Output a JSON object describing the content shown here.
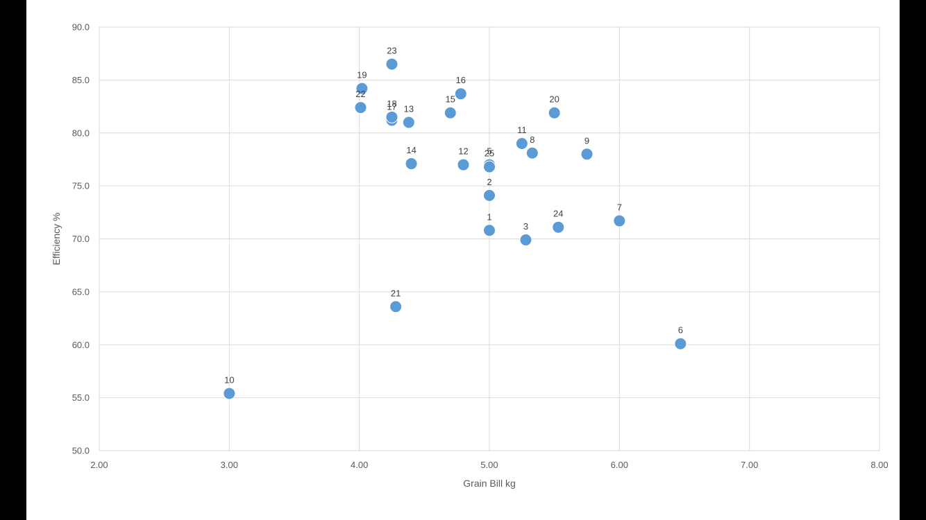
{
  "chart_data": {
    "type": "scatter",
    "title": "",
    "xlabel": "Grain Bill kg",
    "ylabel": "Efficiency %",
    "xlim": [
      2,
      8
    ],
    "ylim": [
      50,
      90
    ],
    "x_ticks": [
      "2.00",
      "3.00",
      "4.00",
      "5.00",
      "6.00",
      "7.00",
      "8.00"
    ],
    "y_ticks": [
      "50.0",
      "55.0",
      "60.0",
      "65.0",
      "70.0",
      "75.0",
      "80.0",
      "85.0",
      "90.0"
    ],
    "grid": true,
    "marker_color": "#5b9bd5",
    "points": [
      {
        "label": "1",
        "x": 5.0,
        "y": 70.8
      },
      {
        "label": "2",
        "x": 5.0,
        "y": 74.1
      },
      {
        "label": "3",
        "x": 5.28,
        "y": 69.9
      },
      {
        "label": "5",
        "x": 5.0,
        "y": 77.0
      },
      {
        "label": "6",
        "x": 6.47,
        "y": 60.1
      },
      {
        "label": "7",
        "x": 6.0,
        "y": 71.7
      },
      {
        "label": "8",
        "x": 5.33,
        "y": 78.1
      },
      {
        "label": "9",
        "x": 5.75,
        "y": 78.0
      },
      {
        "label": "10",
        "x": 3.0,
        "y": 55.4
      },
      {
        "label": "11",
        "x": 5.25,
        "y": 79.0
      },
      {
        "label": "12",
        "x": 4.8,
        "y": 77.0
      },
      {
        "label": "13",
        "x": 4.38,
        "y": 81.0
      },
      {
        "label": "14",
        "x": 4.4,
        "y": 77.1
      },
      {
        "label": "15",
        "x": 4.7,
        "y": 81.9
      },
      {
        "label": "16",
        "x": 4.78,
        "y": 83.7
      },
      {
        "label": "17",
        "x": 4.25,
        "y": 81.2
      },
      {
        "label": "18",
        "x": 4.25,
        "y": 81.5
      },
      {
        "label": "19",
        "x": 4.02,
        "y": 84.2
      },
      {
        "label": "20",
        "x": 5.5,
        "y": 81.9
      },
      {
        "label": "21",
        "x": 4.28,
        "y": 63.6
      },
      {
        "label": "22",
        "x": 4.01,
        "y": 82.4
      },
      {
        "label": "23",
        "x": 4.25,
        "y": 86.5
      },
      {
        "label": "24",
        "x": 5.53,
        "y": 71.1
      },
      {
        "label": "25",
        "x": 5.0,
        "y": 76.8
      }
    ]
  }
}
